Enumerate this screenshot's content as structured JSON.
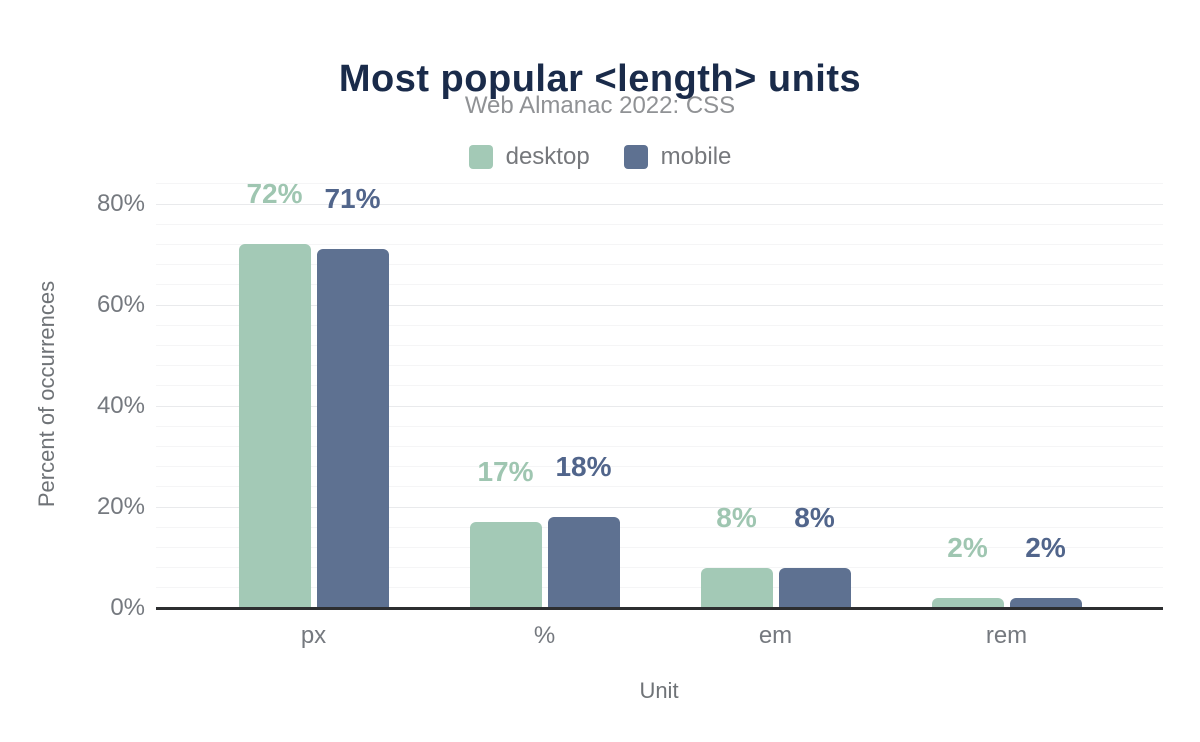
{
  "header": {
    "title": "Most popular <length> units",
    "subtitle": "Web Almanac 2022: CSS"
  },
  "chart_data": {
    "type": "bar",
    "title": "Most popular <length> units",
    "subtitle": "Web Almanac 2022: CSS",
    "categories": [
      "px",
      "%",
      "em",
      "rem"
    ],
    "category_keys": [
      "px",
      "pct",
      "em",
      "rem"
    ],
    "series": [
      {
        "name": "desktop",
        "color": "#a3c9b6",
        "label_color": "#9fc6b1",
        "values": [
          72,
          17,
          8,
          2
        ],
        "labels": [
          "72%",
          "17%",
          "8%",
          "2%"
        ]
      },
      {
        "name": "mobile",
        "color": "#5e7191",
        "label_color": "#51658b",
        "values": [
          71,
          18,
          8,
          2
        ],
        "labels": [
          "71%",
          "18%",
          "8%",
          "2%"
        ]
      }
    ],
    "xlabel": "Unit",
    "ylabel": "Percent of occurrences",
    "ylim": [
      0,
      80
    ],
    "ytick_step": 20,
    "ytick_labels": [
      "0%",
      "20%",
      "40%",
      "60%",
      "80%"
    ],
    "minor_grid_step": 4,
    "grid": true,
    "legend_position": "top"
  },
  "colors": {
    "title": "#1a2b4a",
    "subtitle": "#909295",
    "legend_text": "#76787c",
    "tick_text": "#75797f",
    "axis_title_text": "#6f7377",
    "axis_line": "#2d2e30",
    "grid_major": "#e9eaec",
    "grid_minor": "#f5f5f6",
    "background": "#ffffff"
  }
}
